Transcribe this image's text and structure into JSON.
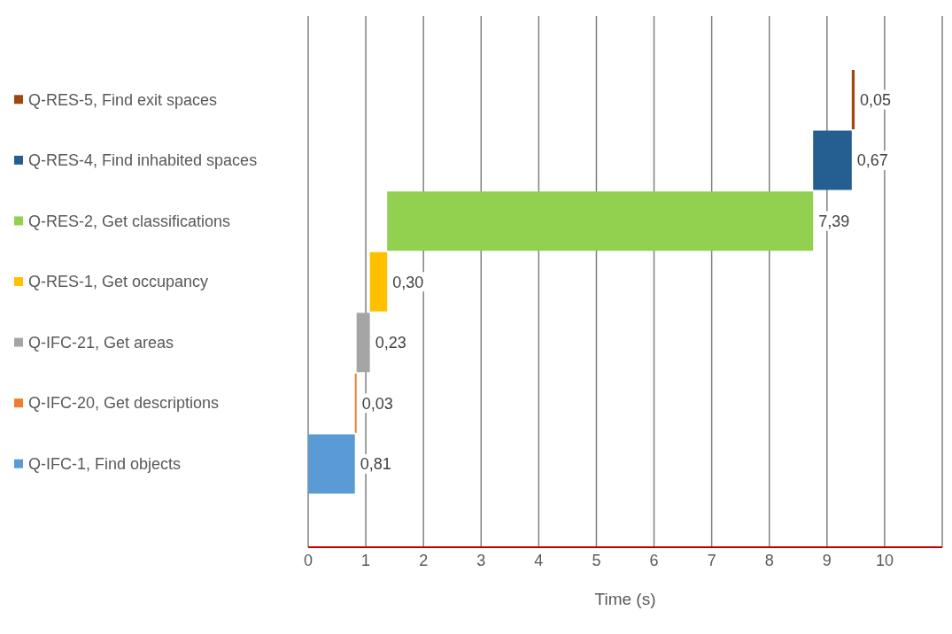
{
  "chart_data": {
    "type": "bar",
    "orientation": "horizontal",
    "xlabel": "Time (s)",
    "categories": [
      "Q-RES-5, Find exit spaces",
      "Q-RES-4, Find inhabited spaces",
      "Q-RES-2, Get classifications",
      "Q-RES-1, Get occupancy",
      "Q-IFC-21, Get areas",
      "Q-IFC-20, Get descriptions",
      "Q-IFC-1, Find objects"
    ],
    "values": [
      0.05,
      0.67,
      7.39,
      0.3,
      0.23,
      0.03,
      0.81
    ],
    "base": [
      9.43,
      8.76,
      1.37,
      1.07,
      0.84,
      0.81,
      0
    ],
    "colors": [
      "#9e480e",
      "#255e91",
      "#92d050",
      "#ffc000",
      "#a5a5a5",
      "#ed7d31",
      "#5b9bd5"
    ],
    "value_labels": [
      "0,05",
      "0,67",
      "7,39",
      "0,30",
      "0,23",
      "0,03",
      "0,81"
    ],
    "xlim": [
      0,
      11
    ],
    "xticks": [
      0,
      1,
      2,
      3,
      4,
      5,
      6,
      7,
      8,
      9,
      10
    ],
    "grid": "x"
  }
}
